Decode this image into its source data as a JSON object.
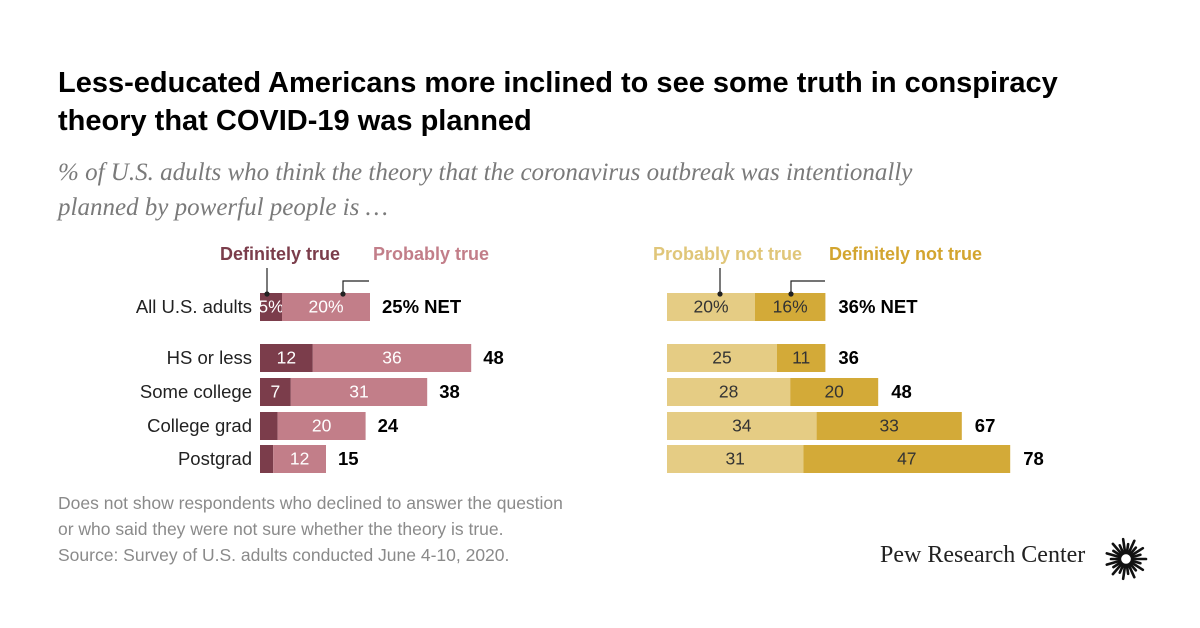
{
  "title": {
    "line1": "Less-educated Americans more inclined to see some truth in conspiracy",
    "line2": "theory that COVID-19 was planned"
  },
  "subtitle": {
    "line1": "% of U.S. adults who think the theory that the coronavirus outbreak was intentionally",
    "line2": "planned by powerful people is …"
  },
  "note": {
    "line1": "Does not show respondents who declined to answer the question",
    "line2": "or who said they were not sure whether the theory is true.",
    "line3": "Source: Survey of U.S. adults conducted June 4-10, 2020."
  },
  "logo": {
    "text": "Pew Research Center"
  },
  "colors": {
    "definitely_true": "#7b3d4b",
    "probably_true": "#c27e89",
    "probably_not_true": "#e5cc84",
    "definitely_not_true": "#d3aa38",
    "net_text": "#000000",
    "label_text": "#ffffff",
    "legend_dt": "#7b3d4b",
    "legend_pt": "#c27e89",
    "legend_pnt": "#e0c679",
    "legend_dnt": "#d3a52f"
  },
  "chart_data": {
    "type": "bar",
    "orientation": "horizontal",
    "stacked": true,
    "title": "Less-educated Americans more inclined to see some truth in conspiracy theory that COVID-19 was planned",
    "categories": [
      "All U.S. adults",
      "HS or less",
      "Some college",
      "College grad",
      "Postgrad"
    ],
    "series": [
      {
        "name": "Definitely true",
        "panel": "true",
        "values": [
          5,
          12,
          7,
          4,
          3
        ],
        "labels": [
          "5%",
          "12",
          "7",
          "",
          ""
        ]
      },
      {
        "name": "Probably true",
        "panel": "true",
        "values": [
          20,
          36,
          31,
          20,
          12
        ],
        "labels": [
          "20%",
          "36",
          "31",
          "20",
          "12"
        ]
      },
      {
        "name": "Probably not true",
        "panel": "not_true",
        "values": [
          20,
          25,
          28,
          34,
          31
        ],
        "labels": [
          "20%",
          "25",
          "28",
          "34",
          "31"
        ]
      },
      {
        "name": "Definitely not true",
        "panel": "not_true",
        "values": [
          16,
          11,
          20,
          33,
          47
        ],
        "labels": [
          "16%",
          "11",
          "20",
          "33",
          "47"
        ]
      }
    ],
    "net_true": [
      "25% NET",
      "48",
      "38",
      "24",
      "15"
    ],
    "net_not_true": [
      "36% NET",
      "36",
      "48",
      "67",
      "78"
    ],
    "legend_left": [
      "Definitely true",
      "Probably true"
    ],
    "legend_right": [
      "Probably not true",
      "Definitely not true"
    ]
  }
}
